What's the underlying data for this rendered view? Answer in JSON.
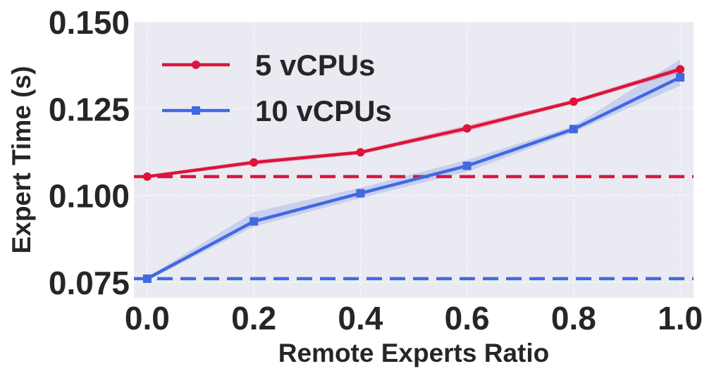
{
  "chart_data": {
    "type": "line",
    "xlabel": "Remote Experts Ratio",
    "ylabel": "Expert Time (s)",
    "x": [
      0.0,
      0.2,
      0.4,
      0.6,
      0.8,
      1.0
    ],
    "xlim": [
      -0.025,
      1.025
    ],
    "ylim": [
      0.0705,
      0.15
    ],
    "xticks": [
      0.0,
      0.2,
      0.4,
      0.6,
      0.8,
      1.0
    ],
    "xtick_labels": [
      "0.0",
      "0.2",
      "0.4",
      "0.6",
      "0.8",
      "1.0"
    ],
    "yticks": [
      0.075,
      0.1,
      0.125,
      0.15
    ],
    "ytick_labels": [
      "0.075",
      "0.100",
      "0.125",
      "0.150"
    ],
    "grid": true,
    "legend_position": "top-left",
    "series": [
      {
        "name": "5 vCPUs",
        "color": "#dc143c",
        "marker": "circle",
        "values": [
          0.1054,
          0.1095,
          0.1124,
          0.1193,
          0.127,
          0.1363
        ],
        "band_lower": [
          0.105,
          0.1088,
          0.1118,
          0.1184,
          0.1264,
          0.1354
        ],
        "band_upper": [
          0.1058,
          0.1102,
          0.113,
          0.1202,
          0.1276,
          0.1372
        ],
        "baseline": 0.1054
      },
      {
        "name": "10 vCPUs",
        "color": "#4169e1",
        "marker": "square",
        "values": [
          0.076,
          0.0925,
          0.1006,
          0.1085,
          0.1191,
          0.134
        ],
        "band_lower": [
          0.0755,
          0.091,
          0.0992,
          0.1068,
          0.1182,
          0.1316
        ],
        "band_upper": [
          0.0765,
          0.0952,
          0.1022,
          0.1102,
          0.12,
          0.1392
        ],
        "baseline": 0.076
      }
    ]
  }
}
